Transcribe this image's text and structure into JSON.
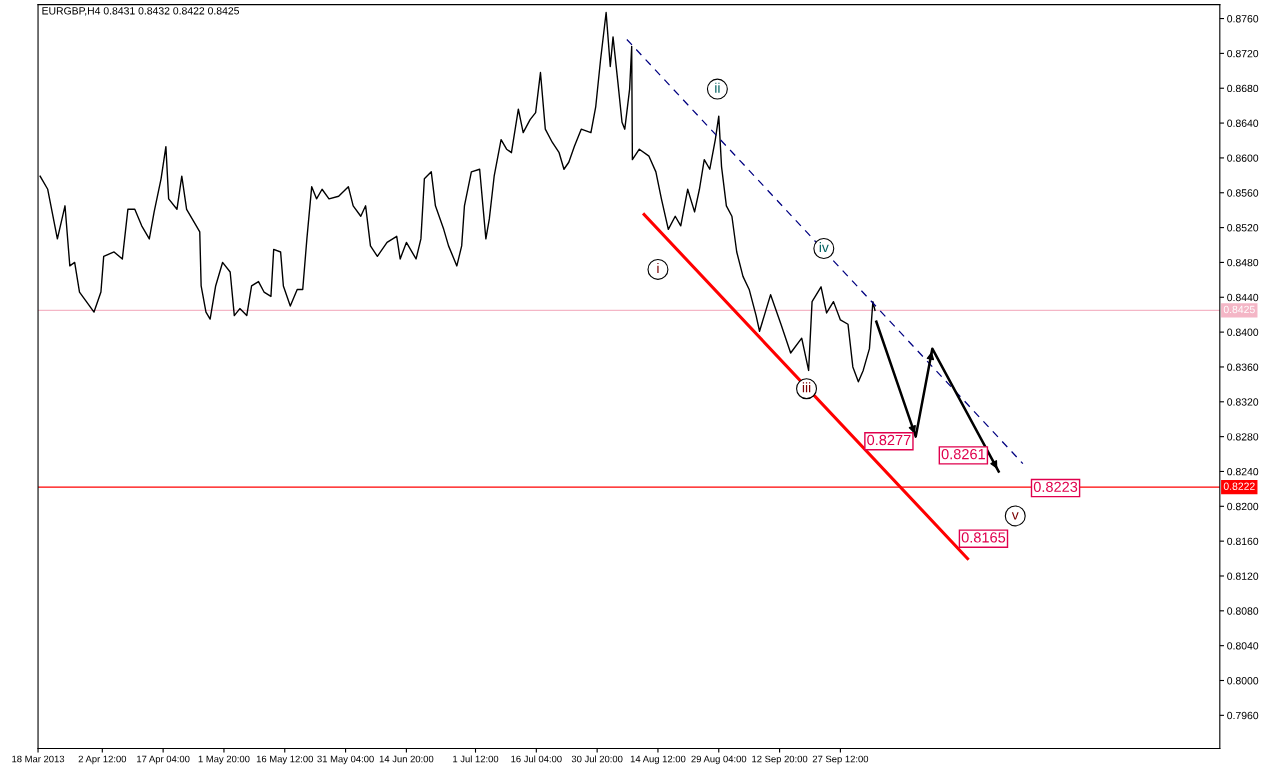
{
  "chart_data": {
    "type": "line",
    "title": "EURGBP,H4 0.8431 0.8432 0.8422 0.8425",
    "xlim": [
      "2013-03-18T00:00",
      "2013-12-28T00:00"
    ],
    "xticks": [
      {
        "value": "2013-03-18T00:00",
        "label": "18 Mar 2013"
      },
      {
        "value": "2013-04-02T12:00",
        "label": "2 Apr 12:00"
      },
      {
        "value": "2013-04-17T04:00",
        "label": "17 Apr 04:00"
      },
      {
        "value": "2013-05-01T20:00",
        "label": "1 May 20:00"
      },
      {
        "value": "2013-05-16T12:00",
        "label": "16 May 12:00"
      },
      {
        "value": "2013-05-31T04:00",
        "label": "31 May 04:00"
      },
      {
        "value": "2013-06-14T20:00",
        "label": "14 Jun 20:00"
      },
      {
        "value": "2013-07-01T12:00",
        "label": "1 Jul 12:00"
      },
      {
        "value": "2013-07-16T04:00",
        "label": "16 Jul 04:00"
      },
      {
        "value": "2013-07-30T20:00",
        "label": "30 Jul 20:00"
      },
      {
        "value": "2013-08-14T12:00",
        "label": "14 Aug 12:00"
      },
      {
        "value": "2013-08-29T04:00",
        "label": "29 Aug 04:00"
      },
      {
        "value": "2013-09-12T20:00",
        "label": "12 Sep 20:00"
      },
      {
        "value": "2013-09-27T12:00",
        "label": "27 Sep 12:00"
      }
    ],
    "ylim": [
      0.7922,
      0.8776
    ],
    "yticks": [
      {
        "value": 0.796,
        "label": "0.7960"
      },
      {
        "value": 0.8,
        "label": "0.8000"
      },
      {
        "value": 0.804,
        "label": "0.8040"
      },
      {
        "value": 0.808,
        "label": "0.8080"
      },
      {
        "value": 0.812,
        "label": "0.8120"
      },
      {
        "value": 0.816,
        "label": "0.8160"
      },
      {
        "value": 0.82,
        "label": "0.8200"
      },
      {
        "value": 0.824,
        "label": "0.8240"
      },
      {
        "value": 0.828,
        "label": "0.8280"
      },
      {
        "value": 0.832,
        "label": "0.8320"
      },
      {
        "value": 0.836,
        "label": "0.8360"
      },
      {
        "value": 0.84,
        "label": "0.8400"
      },
      {
        "value": 0.844,
        "label": "0.8440"
      },
      {
        "value": 0.848,
        "label": "0.8480"
      },
      {
        "value": 0.852,
        "label": "0.8520"
      },
      {
        "value": 0.856,
        "label": "0.8560"
      },
      {
        "value": 0.86,
        "label": "0.8600"
      },
      {
        "value": 0.864,
        "label": "0.8640"
      },
      {
        "value": 0.868,
        "label": "0.8680"
      },
      {
        "value": 0.872,
        "label": "0.8720"
      },
      {
        "value": 0.876,
        "label": "0.8760"
      }
    ],
    "series": [
      {
        "color": "#000000",
        "x": [
          "2013-03-18T12:00",
          "2013-03-20T08:00",
          "2013-03-22T16:00",
          "2013-03-24T12:00",
          "2013-03-25T16:00",
          "2013-03-26T20:00",
          "2013-03-28T00:00",
          "2013-03-29T16:00",
          "2013-03-31T12:00",
          "2013-04-02T04:00",
          "2013-04-02T20:00",
          "2013-04-05T08:00",
          "2013-04-07T08:00",
          "2013-04-08T16:00",
          "2013-04-10T08:00",
          "2013-04-12T00:00",
          "2013-04-13T20:00",
          "2013-04-15T00:00",
          "2013-04-16T16:00",
          "2013-04-17T20:00",
          "2013-04-18T12:00",
          "2013-04-20T12:00",
          "2013-04-21T16:00",
          "2013-04-22T20:00",
          "2013-04-25T04:00",
          "2013-04-26T00:00",
          "2013-04-26T08:00",
          "2013-04-27T12:00",
          "2013-04-28T12:00",
          "2013-04-29T20:00",
          "2013-05-01T12:00",
          "2013-05-03T08:00",
          "2013-05-04T08:00",
          "2013-05-05T16:00",
          "2013-05-07T08:00",
          "2013-05-08T12:00",
          "2013-05-10T04:00",
          "2013-05-11T12:00",
          "2013-05-13T04:00",
          "2013-05-13T20:00",
          "2013-05-15T12:00",
          "2013-05-16T04:00",
          "2013-05-17T20:00",
          "2013-05-19T12:00",
          "2013-05-20T20:00",
          "2013-05-21T20:00",
          "2013-05-23T00:00",
          "2013-05-24T04:00",
          "2013-05-25T12:00",
          "2013-05-27T04:00",
          "2013-05-29T12:00",
          "2013-05-31T20:00",
          "2013-06-02T00:00",
          "2013-06-03T20:00",
          "2013-06-05T00:00",
          "2013-06-06T04:00",
          "2013-06-07T20:00",
          "2013-06-10T04:00",
          "2013-06-12T12:00",
          "2013-06-13T08:00",
          "2013-06-14T20:00",
          "2013-06-17T04:00",
          "2013-06-18T08:00",
          "2013-06-19T04:00",
          "2013-06-20T20:00",
          "2013-06-21T20:00",
          "2013-06-23T20:00",
          "2013-06-25T00:00",
          "2013-06-27T00:00",
          "2013-06-28T04:00",
          "2013-06-28T20:00",
          "2013-06-30T12:00",
          "2013-07-02T12:00",
          "2013-07-04T00:00",
          "2013-07-04T20:00",
          "2013-07-06T00:00",
          "2013-07-07T16:00",
          "2013-07-09T00:00",
          "2013-07-10T04:00",
          "2013-07-11T20:00",
          "2013-07-13T00:00",
          "2013-07-14T16:00",
          "2013-07-16T00:00",
          "2013-07-17T04:00",
          "2013-07-18T08:00",
          "2013-07-20T00:00",
          "2013-07-21T16:00",
          "2013-07-22T20:00",
          "2013-07-24T00:00",
          "2013-07-25T08:00",
          "2013-07-27T00:00",
          "2013-07-29T08:00",
          "2013-07-30T12:00",
          "2013-07-31T16:00",
          "2013-08-02T00:00",
          "2013-08-03T00:00",
          "2013-08-03T16:00",
          "2013-08-04T20:00",
          "2013-08-05T20:00",
          "2013-08-06T12:00",
          "2013-08-07T16:00",
          "2013-08-08T04:00",
          "2013-08-08T08:00",
          "2013-08-10T00:00",
          "2013-08-12T08:00",
          "2013-08-14T00:00",
          "2013-08-15T08:00",
          "2013-08-17T00:00",
          "2013-08-18T16:00",
          "2013-08-20T00:00",
          "2013-08-21T16:00",
          "2013-08-23T08:00",
          "2013-08-24T12:00",
          "2013-08-25T16:00",
          "2013-08-27T00:00",
          "2013-08-28T08:00",
          "2013-08-29T04:00",
          "2013-08-29T20:00",
          "2013-08-31T00:00",
          "2013-09-01T08:00",
          "2013-09-02T12:00",
          "2013-09-04T00:00",
          "2013-09-05T12:00",
          "2013-09-07T04:00",
          "2013-09-08T00:00",
          "2013-09-10T16:00",
          "2013-09-13T04:00",
          "2013-09-15T12:00",
          "2013-09-18T04:00",
          "2013-09-19T20:00",
          "2013-09-20T16:00",
          "2013-09-22T20:00",
          "2013-09-24T04:00",
          "2013-09-25T20:00",
          "2013-09-27T12:00",
          "2013-09-29T08:00",
          "2013-09-30T12:00",
          "2013-10-01T20:00",
          "2013-10-03T00:00",
          "2013-10-04T12:00",
          "2013-10-05T08:00",
          "2013-10-05T20:00"
        ],
        "values": [
          0.8579,
          0.8564,
          0.8507,
          0.8545,
          0.8476,
          0.848,
          0.8446,
          0.8435,
          0.8423,
          0.8446,
          0.8487,
          0.8492,
          0.8484,
          0.8541,
          0.8541,
          0.8522,
          0.8507,
          0.8538,
          0.8576,
          0.8613,
          0.8553,
          0.8541,
          0.8579,
          0.8541,
          0.8522,
          0.8515,
          0.8453,
          0.8423,
          0.8415,
          0.8453,
          0.848,
          0.8469,
          0.8419,
          0.8427,
          0.8419,
          0.8453,
          0.8458,
          0.8446,
          0.8441,
          0.8495,
          0.8492,
          0.8453,
          0.843,
          0.8449,
          0.8449,
          0.8507,
          0.8567,
          0.8553,
          0.8564,
          0.8553,
          0.8556,
          0.8567,
          0.8545,
          0.8533,
          0.8545,
          0.8499,
          0.8487,
          0.8503,
          0.851,
          0.8484,
          0.8503,
          0.8484,
          0.8507,
          0.8576,
          0.8584,
          0.8545,
          0.8518,
          0.8499,
          0.8476,
          0.8499,
          0.8545,
          0.8584,
          0.8587,
          0.8507,
          0.853,
          0.8579,
          0.8621,
          0.861,
          0.8606,
          0.8656,
          0.8629,
          0.8644,
          0.8652,
          0.8698,
          0.8633,
          0.8618,
          0.8606,
          0.8587,
          0.8595,
          0.8613,
          0.8633,
          0.8629,
          0.8659,
          0.8713,
          0.8767,
          0.8705,
          0.8739,
          0.8687,
          0.8641,
          0.8633,
          0.8679,
          0.8728,
          0.8598,
          0.861,
          0.8602,
          0.8584,
          0.8553,
          0.8518,
          0.8533,
          0.8522,
          0.8564,
          0.8538,
          0.8564,
          0.8598,
          0.8587,
          0.8621,
          0.8648,
          0.859,
          0.8545,
          0.8533,
          0.8492,
          0.8464,
          0.8449,
          0.8419,
          0.8401,
          0.8443,
          0.8409,
          0.8376,
          0.8393,
          0.8356,
          0.8435,
          0.8452,
          0.8422,
          0.8435,
          0.8414,
          0.8409,
          0.836,
          0.8343,
          0.8356,
          0.8381,
          0.8435,
          0.8425
        ]
      },
      {
        "color": "#ff0000",
        "x": [
          "2013-08-11T04:00",
          "2013-10-28T04:00"
        ],
        "values": [
          0.8535,
          0.814
        ]
      },
      {
        "color": "#000080",
        "line_style": "dashed",
        "x": [
          "2013-08-07T00:00",
          "2013-11-10T12:00"
        ],
        "values": [
          0.8736,
          0.8249
        ]
      },
      {
        "color": "#000000",
        "x": [
          "2013-10-06T04:00",
          "2013-10-15T16:00",
          "2013-10-19T16:00",
          "2013-11-04T16:00"
        ],
        "values": [
          0.8412,
          0.828,
          0.8381,
          0.824
        ]
      }
    ],
    "ref_lines": [
      {
        "axis": "y",
        "value": 0.8425,
        "label": "0.8425",
        "color": "#f4b6c6"
      },
      {
        "axis": "y",
        "value": 0.8222,
        "label": "0.8222",
        "color": "#ff0000"
      }
    ],
    "annotations": [
      {
        "text": "i",
        "x": "2013-08-14T12:00",
        "y": 0.8472
      },
      {
        "text": "ii",
        "x": "2013-08-28T20:00",
        "y": 0.8679
      },
      {
        "text": "iii",
        "x": "2013-09-19T08:00",
        "y": 0.8335
      },
      {
        "text": "iv",
        "x": "2013-09-23T12:00",
        "y": 0.8496
      },
      {
        "text": "v",
        "x": "2013-11-08T16:00",
        "y": 0.8189
      },
      "0.8277",
      "0.8261",
      "0.8223",
      "0.8165"
    ]
  }
}
